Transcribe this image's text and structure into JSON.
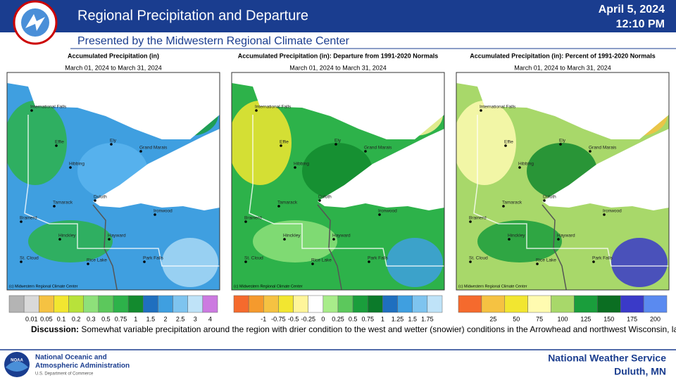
{
  "header": {
    "title": "Regional Precipitation and Departure",
    "date": "April 5, 2024",
    "time": "12:10 PM",
    "subtitle": "Presented by the Midwestern Regional Climate Center"
  },
  "panels": [
    {
      "title": "Accumulated Precipitation (in)",
      "dates": "March 01, 2024 to March 31, 2024",
      "credit": "(c) Midwestern Regional Climate Center",
      "base": "#3f9fe0",
      "blobs": [
        "#2db24a",
        "#1a9e3c",
        "#5ab4ee",
        "#a8d8f5",
        "#2db24a"
      ],
      "legend": {
        "colors": [
          "#b4b4b4",
          "#d9d9d9",
          "#f5c242",
          "#f2e630",
          "#b8e23a",
          "#8ee07a",
          "#5cc85c",
          "#2db24a",
          "#138a2e",
          "#1f6fbf",
          "#3f9fe0",
          "#7ec4ef",
          "#bfe3f8",
          "#cc7ae0"
        ],
        "labels": [
          "0.01",
          "0.05",
          "0.1",
          "0.2",
          "0.3",
          "0.5",
          "0.75",
          "1",
          "1.5",
          "2",
          "2.5",
          "3",
          "4"
        ]
      }
    },
    {
      "title": "Accumulated Precipitation (in): Departure from 1991-2020 Normals",
      "dates": "March 01, 2024 to March 31, 2024",
      "credit": "(c) Midwestern Regional Climate Center",
      "base": "#2db24a",
      "blobs": [
        "#f2e630",
        "#fff59a",
        "#138a2e",
        "#3f9fe0",
        "#8ee07a"
      ],
      "legend": {
        "colors": [
          "#f56a2d",
          "#f59a2d",
          "#f5c242",
          "#f2e630",
          "#fff59a",
          "#ffffff",
          "#a8ec8a",
          "#5cc85c",
          "#1a9e3c",
          "#0b7a2a",
          "#1f6fbf",
          "#3f9fe0",
          "#7ec4ef",
          "#bfe3f8"
        ],
        "labels": [
          "-1",
          "-0.75",
          "-0.5",
          "-0.25",
          "0",
          "0.25",
          "0.5",
          "0.75",
          "1",
          "1.25",
          "1.5",
          "1.75"
        ]
      }
    },
    {
      "title": "Accumulated Precipitation (in): Percent of 1991-2020 Normals",
      "dates": "March 01, 2024 to March 31, 2024",
      "credit": "(c) Midwestern Regional Climate Center",
      "base": "#a8d86a",
      "blobs": [
        "#fffbb0",
        "#f5c242",
        "#138a2e",
        "#3a3ac8",
        "#1a9e3c"
      ],
      "legend": {
        "colors": [
          "#f56a2d",
          "#f5c242",
          "#f2e630",
          "#fffbb0",
          "#a8d86a",
          "#1a9e3c",
          "#0b6e22",
          "#3a3ac8",
          "#5a8af0"
        ],
        "labels": [
          "25",
          "50",
          "75",
          "100",
          "125",
          "150",
          "175",
          "200"
        ]
      }
    }
  ],
  "cities": [
    "International Falls",
    "Ely",
    "Grand Marais",
    "Effie",
    "Hibbing",
    "Duluth",
    "Tamarack",
    "Brainerd",
    "Ironwood",
    "Hinckley",
    "Hayward",
    "Park Falls",
    "St. Cloud",
    "Rice Lake"
  ],
  "discussion": {
    "label": "Discussion:",
    "text": "Somewhat variable precipitation around the region with drier condition to the west and wetter (snowier) conditions in the Arrowhead and northwest Wisconsin, largely due to a few storms that happened to track over those areas."
  },
  "footer": {
    "noaa_line1": "National Oceanic and",
    "noaa_line2": "Atmospheric Administration",
    "noaa_line3": "U.S. Department of Commerce",
    "nws": "National Weather Service",
    "office": "Duluth, MN"
  }
}
